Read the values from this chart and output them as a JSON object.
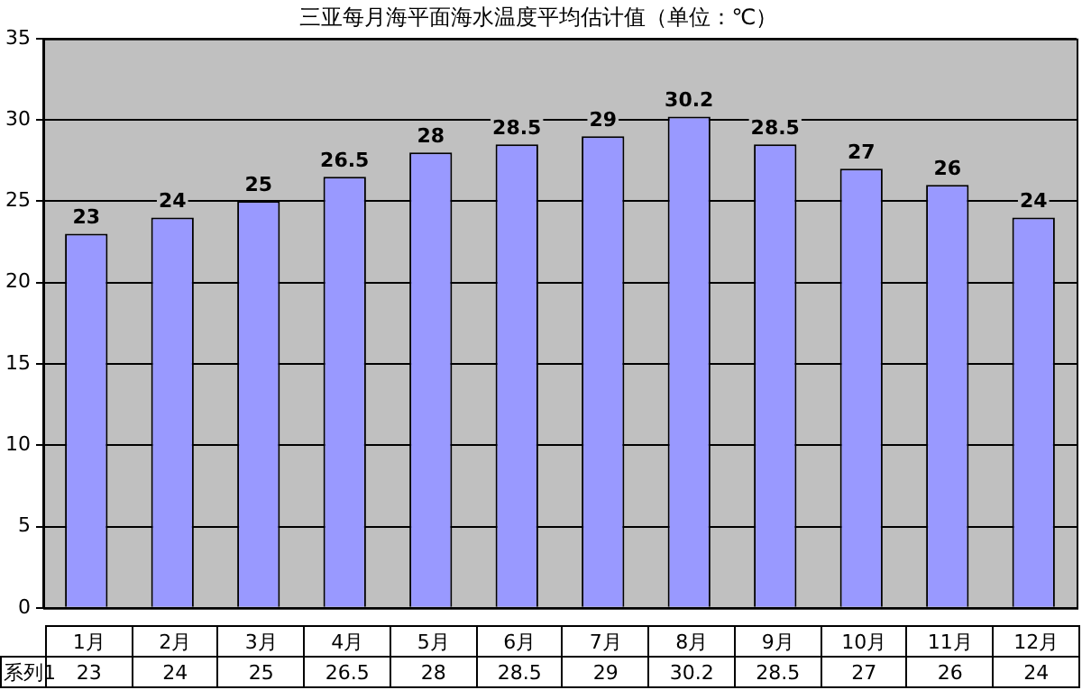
{
  "chart_data": {
    "type": "bar",
    "title": "三亚每月海平面海水温度平均估计值（单位：℃）",
    "categories": [
      "1月",
      "2月",
      "3月",
      "4月",
      "5月",
      "6月",
      "7月",
      "8月",
      "9月",
      "10月",
      "11月",
      "12月"
    ],
    "series": [
      {
        "name": "系列1",
        "color": "#9999ff",
        "values": [
          23,
          24,
          25,
          26.5,
          28,
          28.5,
          29,
          30.2,
          28.5,
          27,
          26,
          24
        ]
      }
    ],
    "annotations": [
      {
        "text": "23",
        "x": "1月",
        "y": 23
      },
      {
        "text": "24",
        "x": "2月",
        "y": 24
      },
      {
        "text": "25",
        "x": "3月",
        "y": 25
      },
      {
        "text": "26.5",
        "x": "4月",
        "y": 26.5
      },
      {
        "text": "28",
        "x": "5月",
        "y": 28
      },
      {
        "text": "28.5",
        "x": "6月",
        "y": 28.5
      },
      {
        "text": "29",
        "x": "7月",
        "y": 29
      },
      {
        "text": "30.2",
        "x": "8月",
        "y": 30.2
      },
      {
        "text": "28.5",
        "x": "9月",
        "y": 28.5
      },
      {
        "text": "27",
        "x": "10月",
        "y": 27
      },
      {
        "text": "26",
        "x": "11月",
        "y": 26
      },
      {
        "text": "24",
        "x": "12月",
        "y": 24
      }
    ],
    "ylim": [
      0,
      35
    ],
    "yticks": [
      0,
      5,
      10,
      15,
      20,
      25,
      30,
      35
    ],
    "grid": "y",
    "data_labels": true,
    "legend": false
  }
}
